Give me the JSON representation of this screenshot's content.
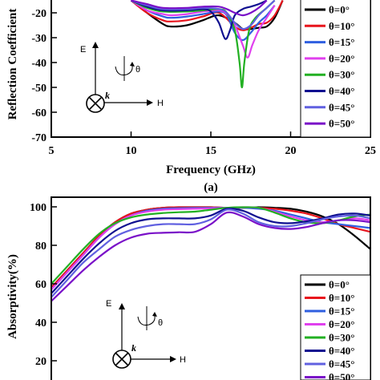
{
  "colors": {
    "theta_0": "#000000",
    "theta_10": "#e8141c",
    "theta_15": "#2f5fe0",
    "theta_20": "#e040ee",
    "theta_30": "#22b022",
    "theta_40": "#101090",
    "theta_45": "#6060e0",
    "theta_50": "#7a10c8"
  },
  "chart_data": [
    {
      "type": "line",
      "panel_label": "(a)",
      "xlabel": "Frequency (GHz)",
      "ylabel": "Reflection Coefficient",
      "xlim": [
        5,
        25
      ],
      "ylim": [
        -70,
        -15
      ],
      "xticks": [
        "5",
        "10",
        "15",
        "20",
        "25"
      ],
      "yticks": [
        "-20",
        "-30",
        "-40",
        "-50",
        "-60",
        "-70"
      ],
      "legend_position": "right",
      "series": [
        {
          "name": "θ=0°",
          "x": [
            10.0,
            11.0,
            12.0,
            12.5,
            13.5,
            14.5,
            15.5,
            16.5,
            17.0,
            17.5,
            18.0,
            18.5,
            19.0,
            19.5
          ],
          "y": [
            -15.0,
            -20.0,
            -24.5,
            -25.5,
            -25.0,
            -23.0,
            -21.0,
            -24.0,
            -26.5,
            -26.5,
            -26.0,
            -25.5,
            -22.0,
            -15.0
          ]
        },
        {
          "name": "θ=10°",
          "x": [
            10.0,
            11.0,
            12.0,
            12.5,
            13.5,
            14.5,
            15.5,
            16.5,
            17.0,
            17.5,
            18.0,
            18.5,
            19.0,
            19.5
          ],
          "y": [
            -15.0,
            -20.0,
            -23.0,
            -23.5,
            -23.0,
            -21.5,
            -20.0,
            -25.5,
            -27.0,
            -26.0,
            -24.5,
            -24.0,
            -21.0,
            -15.0
          ]
        },
        {
          "name": "θ=15°",
          "x": [
            10.0,
            11.0,
            12.0,
            12.5,
            13.5,
            14.5,
            15.5,
            16.0,
            16.5,
            17.0,
            17.5,
            18.0,
            18.5,
            19.0
          ],
          "y": [
            -15.0,
            -19.0,
            -21.5,
            -22.0,
            -21.5,
            -20.5,
            -19.5,
            -21.0,
            -28.0,
            -31.0,
            -28.0,
            -24.0,
            -21.0,
            -17.0
          ]
        },
        {
          "name": "θ=20°",
          "x": [
            10.0,
            11.0,
            12.0,
            12.5,
            13.5,
            14.5,
            15.5,
            16.0,
            16.5,
            17.0,
            17.3,
            17.6,
            18.0,
            18.5,
            19.0
          ],
          "y": [
            -15.0,
            -19.0,
            -20.5,
            -21.0,
            -20.5,
            -19.5,
            -19.0,
            -20.5,
            -25.0,
            -33.0,
            -38.0,
            -33.0,
            -27.0,
            -22.0,
            -17.0
          ]
        },
        {
          "name": "θ=30°",
          "x": [
            10.0,
            11.0,
            12.0,
            13.5,
            14.5,
            15.5,
            16.0,
            16.5,
            16.8,
            16.95,
            17.1,
            17.4,
            17.8,
            18.5,
            19.0
          ],
          "y": [
            -15.0,
            -18.0,
            -19.5,
            -19.5,
            -19.0,
            -18.5,
            -20.0,
            -27.0,
            -40.0,
            -50.0,
            -40.0,
            -27.0,
            -22.0,
            -18.0,
            -15.0
          ]
        },
        {
          "name": "θ=40°",
          "x": [
            10.0,
            11.0,
            12.0,
            13.5,
            14.5,
            15.0,
            15.5,
            15.9,
            16.2,
            16.5,
            17.0,
            17.5,
            18.0,
            18.5
          ],
          "y": [
            -15.0,
            -17.5,
            -19.0,
            -19.0,
            -18.5,
            -19.5,
            -24.0,
            -30.5,
            -27.0,
            -21.0,
            -18.5,
            -17.5,
            -16.5,
            -15.0
          ]
        },
        {
          "name": "θ=45°",
          "x": [
            10.0,
            11.0,
            12.0,
            13.5,
            14.5,
            15.5,
            16.0,
            16.5,
            17.0,
            17.5,
            18.0,
            18.5,
            19.0
          ],
          "y": [
            -15.0,
            -17.0,
            -18.5,
            -18.5,
            -18.0,
            -18.5,
            -20.0,
            -24.0,
            -26.5,
            -25.0,
            -21.0,
            -18.0,
            -15.0
          ]
        },
        {
          "name": "θ=50°",
          "x": [
            10.0,
            11.0,
            12.0,
            13.5,
            14.5,
            15.5,
            16.0,
            16.5,
            17.0,
            17.5,
            18.0,
            18.5
          ],
          "y": [
            -15.0,
            -16.5,
            -18.0,
            -18.0,
            -17.5,
            -17.5,
            -18.5,
            -20.0,
            -21.0,
            -20.0,
            -18.0,
            -15.0
          ]
        }
      ]
    },
    {
      "type": "line",
      "ylabel": "Absorptivity(%)",
      "xlim": [
        5,
        25
      ],
      "ylim": [
        10,
        105
      ],
      "yticks": [
        "100",
        "80",
        "60",
        "40",
        "20"
      ],
      "legend_position": "right",
      "series": [
        {
          "name": "θ=0°",
          "x": [
            5,
            6,
            7,
            8,
            9,
            10,
            11,
            12,
            13,
            14,
            15,
            16,
            17,
            18,
            19,
            20,
            21,
            22,
            23,
            24,
            25
          ],
          "y": [
            58,
            67,
            76,
            85,
            92,
            96.5,
            98.5,
            99.5,
            99.8,
            99.8,
            99.8,
            99.5,
            99.5,
            99.8,
            99.5,
            99,
            97.5,
            95,
            91,
            85,
            78
          ]
        },
        {
          "name": "θ=10°",
          "x": [
            5,
            6,
            7,
            8,
            9,
            10,
            11,
            12,
            13,
            14,
            15,
            16,
            17,
            18,
            19,
            20,
            21,
            22,
            23,
            24,
            25
          ],
          "y": [
            58,
            67,
            76,
            85,
            92,
            96.5,
            98.5,
            99.5,
            99.8,
            99.8,
            99.8,
            99.5,
            99.5,
            99.5,
            99,
            98,
            96.5,
            94,
            91,
            89,
            87
          ]
        },
        {
          "name": "θ=15°",
          "x": [
            5,
            6,
            7,
            8,
            9,
            10,
            11,
            12,
            13,
            14,
            15,
            16,
            17,
            18,
            19,
            20,
            21,
            22,
            23,
            24,
            25
          ],
          "y": [
            57,
            66,
            75,
            84,
            91,
            95.5,
            98,
            99,
            99.3,
            99.4,
            99.5,
            99.5,
            99.5,
            99,
            98,
            96,
            94,
            92,
            91,
            90,
            89
          ]
        },
        {
          "name": "θ=20°",
          "x": [
            5,
            6,
            7,
            8,
            9,
            10,
            11,
            12,
            13,
            14,
            15,
            16,
            17,
            18,
            19,
            20,
            21,
            22,
            23,
            24,
            25
          ],
          "y": [
            57,
            66,
            75,
            84,
            91,
            95.5,
            97.5,
            98.5,
            98.8,
            99,
            99.2,
            99.5,
            99.8,
            99.5,
            97.5,
            95,
            93,
            92,
            93,
            94,
            93
          ]
        },
        {
          "name": "θ=30°",
          "x": [
            5,
            6,
            7,
            8,
            9,
            10,
            11,
            12,
            13,
            14,
            15,
            16,
            17,
            18,
            19,
            20,
            21,
            22,
            23,
            24,
            25
          ],
          "y": [
            60,
            69,
            78,
            86,
            91.5,
            94.5,
            96,
            96.8,
            97.2,
            97.5,
            98.5,
            99.5,
            99.8,
            99.5,
            97,
            94,
            92,
            91.5,
            93,
            95,
            96
          ]
        },
        {
          "name": "θ=40°",
          "x": [
            5,
            6,
            7,
            8,
            9,
            10,
            11,
            12,
            13,
            14,
            15,
            16,
            17,
            18,
            19,
            20,
            21,
            22,
            23,
            24,
            25
          ],
          "y": [
            55,
            64,
            73,
            81,
            87.5,
            91.5,
            93.5,
            94,
            94,
            94,
            95.5,
            99,
            98,
            94.5,
            92,
            91.5,
            92.5,
            94,
            96,
            96.5,
            95.5
          ]
        },
        {
          "name": "θ=45°",
          "x": [
            5,
            6,
            7,
            8,
            9,
            10,
            11,
            12,
            13,
            14,
            15,
            16,
            17,
            18,
            19,
            20,
            21,
            22,
            23,
            24,
            25
          ],
          "y": [
            53,
            62,
            71,
            78,
            84.5,
            88,
            90,
            91,
            91,
            91,
            93.5,
            98.5,
            96.5,
            92,
            90,
            90,
            91.5,
            93.5,
            95,
            95.5,
            94
          ]
        },
        {
          "name": "θ=50°",
          "x": [
            5,
            6,
            7,
            8,
            9,
            10,
            11,
            12,
            13,
            14,
            15,
            16,
            17,
            18,
            19,
            20,
            21,
            22,
            23,
            24,
            25
          ],
          "y": [
            51,
            59,
            67,
            74,
            80,
            84,
            86,
            86.5,
            86.8,
            87,
            91,
            97,
            95,
            91,
            89,
            88.5,
            89.5,
            91.5,
            93,
            93,
            92
          ]
        }
      ]
    }
  ],
  "inset": {
    "e_label": "E",
    "h_label": "H",
    "k_label": "k",
    "theta_label": "θ"
  }
}
